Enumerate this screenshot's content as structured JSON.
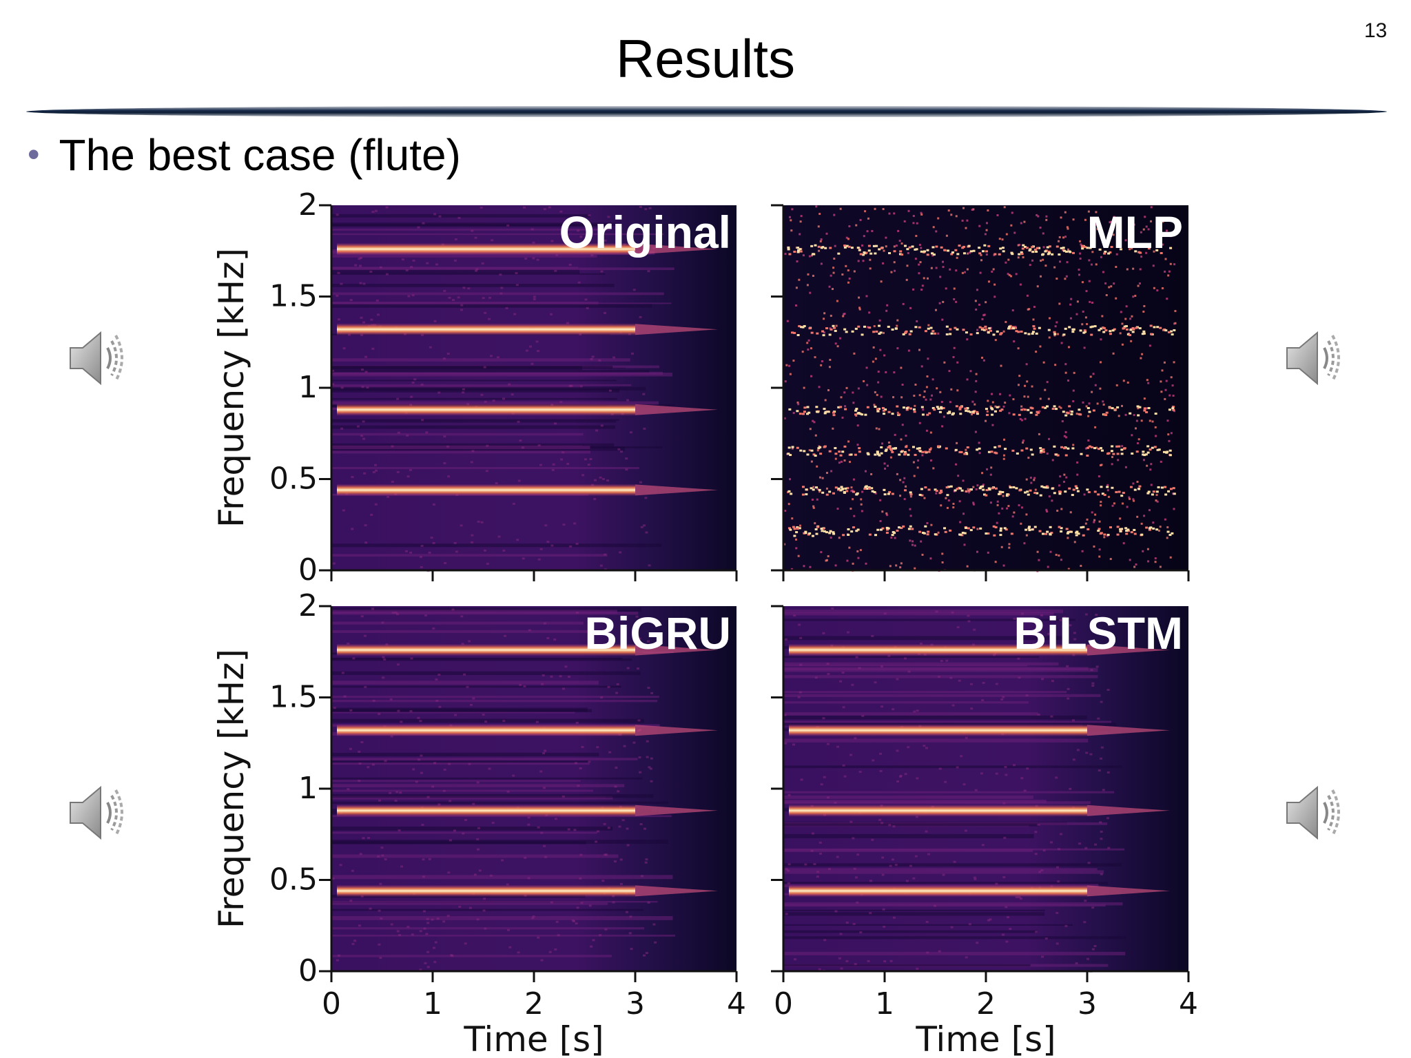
{
  "slide": {
    "page_number": "13",
    "title": "Results",
    "bullet": "The best case (flute)"
  },
  "icons": {
    "speaker": "speaker-icon"
  },
  "chart_data": [
    {
      "type": "heatmap",
      "title": "Original",
      "xlabel": "",
      "ylabel": "Frequency [kHz]",
      "xlim": [
        0,
        4
      ],
      "ylim": [
        0,
        2
      ],
      "x_ticks": [],
      "y_ticks": [
        "0",
        "0.5",
        "1",
        "1.5",
        "2"
      ],
      "harmonics_khz": [
        0.44,
        0.88,
        1.32,
        1.76
      ],
      "note_end_s": 3.0,
      "colormap": "magma"
    },
    {
      "type": "heatmap",
      "title": "MLP",
      "xlabel": "",
      "ylabel": "",
      "xlim": [
        0,
        4
      ],
      "ylim": [
        0,
        2
      ],
      "x_ticks": [],
      "y_ticks": [],
      "harmonics_khz": [
        0.22,
        0.44,
        0.66,
        0.88,
        1.32,
        1.76
      ],
      "note_end_s": 3.0,
      "colormap": "magma"
    },
    {
      "type": "heatmap",
      "title": "BiGRU",
      "xlabel": "Time [s]",
      "ylabel": "Frequency [kHz]",
      "xlim": [
        0,
        4
      ],
      "ylim": [
        0,
        2
      ],
      "x_ticks": [
        "0",
        "1",
        "2",
        "3",
        "4"
      ],
      "y_ticks": [
        "0",
        "0.5",
        "1",
        "1.5",
        "2"
      ],
      "harmonics_khz": [
        0.44,
        0.88,
        1.32,
        1.76
      ],
      "note_end_s": 3.0,
      "colormap": "magma"
    },
    {
      "type": "heatmap",
      "title": "BiLSTM",
      "xlabel": "Time [s]",
      "ylabel": "",
      "xlim": [
        0,
        4
      ],
      "ylim": [
        0,
        2
      ],
      "x_ticks": [
        "0",
        "1",
        "2",
        "3",
        "4"
      ],
      "y_ticks": [],
      "harmonics_khz": [
        0.44,
        0.88,
        1.32,
        1.76
      ],
      "note_end_s": 3.0,
      "colormap": "magma"
    }
  ]
}
